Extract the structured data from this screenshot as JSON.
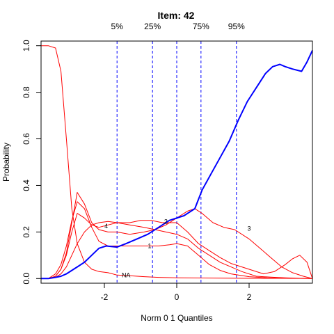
{
  "chart_data": {
    "type": "line",
    "title": "Item:  42",
    "xlabel": "Norm 0 1 Quantiles",
    "ylabel": "Probability",
    "xlim": [
      -3.75,
      3.75
    ],
    "ylim": [
      -0.02,
      1.02
    ],
    "xticks": [
      -2,
      0,
      2
    ],
    "yticks": [
      0.0,
      0.2,
      0.4,
      0.6,
      0.8,
      1.0
    ],
    "ytick_labels": [
      "0.0",
      "0.2",
      "0.4",
      "0.6",
      "0.8",
      "1.0"
    ],
    "grid": false,
    "percentile_lines": [
      {
        "label": "5%",
        "x": -1.65
      },
      {
        "label": "25%",
        "x": -0.67
      },
      {
        "label": "",
        "x": 0.0
      },
      {
        "label": "75%",
        "x": 0.67
      },
      {
        "label": "95%",
        "x": 1.65
      }
    ],
    "series": [
      {
        "name": "NA",
        "color": "#ff0000",
        "width": 1,
        "label_at": [
          -1.4,
          0.015
        ],
        "x": [
          -3.75,
          -3.55,
          -3.35,
          -3.2,
          -3.05,
          -2.9,
          -2.75,
          -2.55,
          -2.35,
          -2.15,
          -1.9,
          -1.65,
          -1.3,
          -0.9,
          -0.5,
          0,
          1,
          2,
          3,
          3.75
        ],
        "y": [
          1.0,
          1.0,
          0.99,
          0.89,
          0.6,
          0.3,
          0.15,
          0.07,
          0.04,
          0.03,
          0.025,
          0.015,
          0.012,
          0.008,
          0.005,
          0.003,
          0.002,
          0.001,
          0.001,
          0.001
        ]
      },
      {
        "name": "1",
        "color": "#ff0000",
        "width": 1,
        "label_at": [
          -0.75,
          0.14
        ],
        "x": [
          -3.75,
          -3.55,
          -3.35,
          -3.2,
          -3.05,
          -2.9,
          -2.75,
          -2.55,
          -2.35,
          -2.15,
          -1.9,
          -1.65,
          -1.3,
          -0.9,
          -0.5,
          -0.2,
          0,
          0.3,
          0.6,
          0.9,
          1.2,
          1.5,
          2,
          2.5,
          3,
          3.75
        ],
        "y": [
          0.0,
          0.0,
          0.02,
          0.06,
          0.14,
          0.25,
          0.33,
          0.3,
          0.22,
          0.16,
          0.14,
          0.14,
          0.14,
          0.14,
          0.14,
          0.145,
          0.15,
          0.14,
          0.1,
          0.06,
          0.035,
          0.02,
          0.008,
          0.003,
          0.001,
          0.0
        ]
      },
      {
        "name": "2",
        "color": "#ff0000",
        "width": 1,
        "label_at": [
          -0.3,
          0.245
        ],
        "x": [
          -3.75,
          -3.55,
          -3.35,
          -3.2,
          -3.05,
          -2.9,
          -2.75,
          -2.55,
          -2.35,
          -2.15,
          -1.9,
          -1.65,
          -1.3,
          -0.9,
          -0.6,
          -0.3,
          0,
          0.3,
          0.6,
          0.9,
          1.2,
          1.5,
          1.8,
          2.2,
          2.6,
          3,
          3.4,
          3.75
        ],
        "y": [
          0.0,
          0.0,
          0.01,
          0.04,
          0.1,
          0.2,
          0.28,
          0.26,
          0.23,
          0.22,
          0.23,
          0.24,
          0.23,
          0.22,
          0.21,
          0.2,
          0.19,
          0.17,
          0.13,
          0.1,
          0.07,
          0.05,
          0.03,
          0.01,
          0.006,
          0.003,
          0.001,
          0.0
        ]
      },
      {
        "name": "3",
        "color": "#ff0000",
        "width": 1,
        "label_at": [
          2.0,
          0.215
        ],
        "x": [
          -3.75,
          -3.55,
          -3.35,
          -3.2,
          -3.05,
          -2.9,
          -2.75,
          -2.55,
          -2.35,
          -2.15,
          -1.9,
          -1.65,
          -1.3,
          -0.9,
          -0.6,
          -0.3,
          0,
          0.3,
          0.5,
          0.7,
          1.0,
          1.3,
          1.6,
          2.0,
          2.3,
          2.6,
          2.9,
          3.2,
          3.5,
          3.75
        ],
        "y": [
          0.0,
          0.0,
          0.01,
          0.04,
          0.11,
          0.24,
          0.37,
          0.32,
          0.24,
          0.21,
          0.2,
          0.2,
          0.19,
          0.2,
          0.21,
          0.23,
          0.26,
          0.29,
          0.3,
          0.28,
          0.24,
          0.22,
          0.21,
          0.17,
          0.13,
          0.09,
          0.05,
          0.025,
          0.01,
          0.0
        ]
      },
      {
        "name": "4",
        "color": "#ff0000",
        "width": 1,
        "label_at": [
          -1.95,
          0.225
        ],
        "x": [
          -3.75,
          -3.55,
          -3.35,
          -3.2,
          -3.05,
          -2.9,
          -2.75,
          -2.55,
          -2.35,
          -2.15,
          -1.9,
          -1.65,
          -1.3,
          -1.0,
          -0.7,
          -0.4,
          0,
          0.3,
          0.6,
          0.9,
          1.2,
          1.5,
          1.8,
          2.1,
          2.4,
          2.7,
          3.0,
          3.2,
          3.4,
          3.6,
          3.75
        ],
        "y": [
          0.0,
          0.0,
          0.005,
          0.02,
          0.05,
          0.1,
          0.15,
          0.2,
          0.23,
          0.24,
          0.245,
          0.24,
          0.24,
          0.25,
          0.25,
          0.24,
          0.24,
          0.2,
          0.15,
          0.12,
          0.09,
          0.065,
          0.05,
          0.035,
          0.02,
          0.03,
          0.06,
          0.085,
          0.1,
          0.07,
          0.0
        ]
      },
      {
        "name": "",
        "color": "#0000ff",
        "width": 2,
        "x": [
          -3.75,
          -3.55,
          -3.35,
          -3.2,
          -3.05,
          -2.9,
          -2.75,
          -2.55,
          -2.35,
          -2.15,
          -1.95,
          -1.65,
          -1.4,
          -1.1,
          -0.8,
          -0.5,
          -0.2,
          0,
          0.2,
          0.5,
          0.7,
          0.95,
          1.2,
          1.45,
          1.7,
          1.95,
          2.2,
          2.45,
          2.65,
          2.85,
          3.0,
          3.2,
          3.45,
          3.6,
          3.75
        ],
        "y": [
          0.0,
          0.0,
          0.005,
          0.01,
          0.02,
          0.035,
          0.05,
          0.07,
          0.1,
          0.13,
          0.14,
          0.135,
          0.15,
          0.17,
          0.19,
          0.22,
          0.25,
          0.26,
          0.27,
          0.3,
          0.38,
          0.45,
          0.52,
          0.59,
          0.68,
          0.76,
          0.82,
          0.88,
          0.91,
          0.92,
          0.91,
          0.9,
          0.89,
          0.93,
          0.98
        ]
      }
    ]
  }
}
